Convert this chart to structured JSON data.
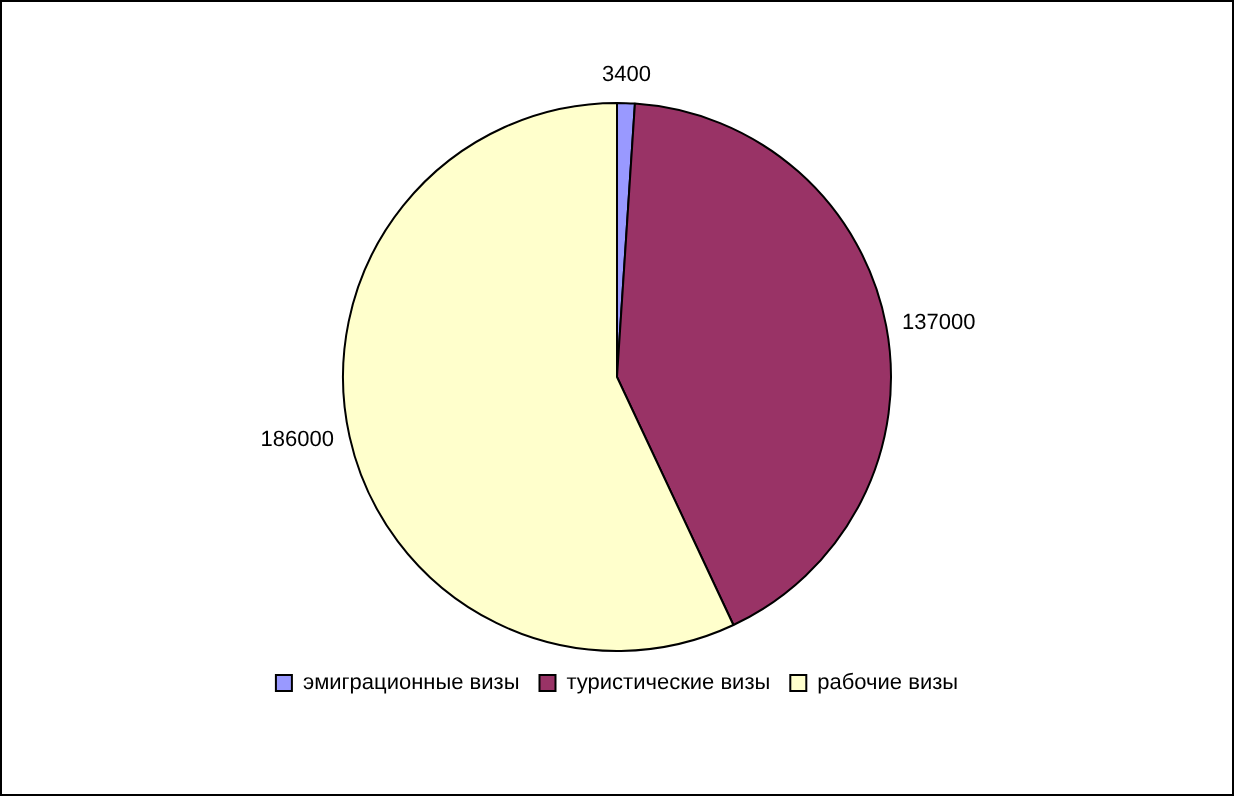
{
  "chart_data": {
    "type": "pie",
    "categories": [
      "эмиграционные визы",
      "туристические визы",
      "рабочие визы"
    ],
    "values": [
      3400,
      137000,
      186000
    ],
    "colors": [
      "#9999ff",
      "#993366",
      "#ffffcc"
    ],
    "data_labels": true,
    "legend": "bottom"
  }
}
